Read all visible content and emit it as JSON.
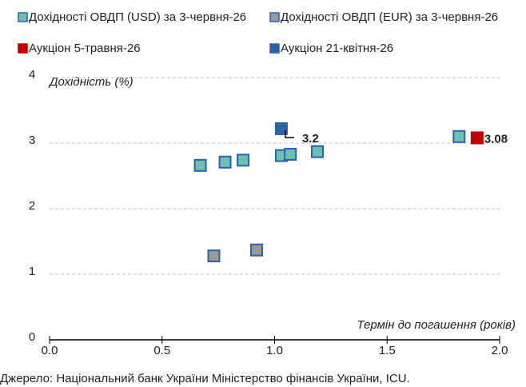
{
  "chart_data": {
    "type": "scatter",
    "y_label": "Дохідність (%)",
    "x_label": "Термін до погашення (років)",
    "source": "Джерело: Національний банк України Міністерство фінансів України, ICU.",
    "xlim": [
      0,
      2
    ],
    "xticks": [
      {
        "value": 0,
        "label": "0.0"
      },
      {
        "value": 0.5,
        "label": "0.5"
      },
      {
        "value": 1,
        "label": "1.0"
      },
      {
        "value": 1.5,
        "label": "1.5"
      },
      {
        "value": 2,
        "label": "2.0"
      }
    ],
    "ylim": [
      0,
      4
    ],
    "yticks": [
      0,
      1,
      2,
      3,
      4
    ],
    "grid": true,
    "series": [
      {
        "name": "Дохідності ОВДП (USD) за 3-червня-26",
        "color": "#6cc0b4",
        "edge": "#2e62a8",
        "x": [
          0.67,
          0.78,
          0.86,
          1.03,
          1.07,
          1.19,
          1.82
        ],
        "values": [
          2.66,
          2.71,
          2.74,
          2.81,
          2.83,
          2.87,
          3.1
        ]
      },
      {
        "name": "Дохідності ОВДП (EUR) за 3-червня-26",
        "color": "#999999",
        "edge": "#2e62a8",
        "x": [
          0.73,
          0.92
        ],
        "values": [
          1.28,
          1.37
        ]
      },
      {
        "name": "Аукціон 5-травня-26",
        "color": "#c00000",
        "edge": "#c00000",
        "x": [
          1.9
        ],
        "values": [
          3.08
        ],
        "value_labels": [
          "3.08"
        ]
      },
      {
        "name": "Аукціон 21-квітня-26",
        "color": "#2e62a8",
        "edge": "#2e62a8",
        "x": [
          1.03
        ],
        "values": [
          3.22
        ],
        "value_labels": [
          "3.2"
        ]
      }
    ]
  }
}
